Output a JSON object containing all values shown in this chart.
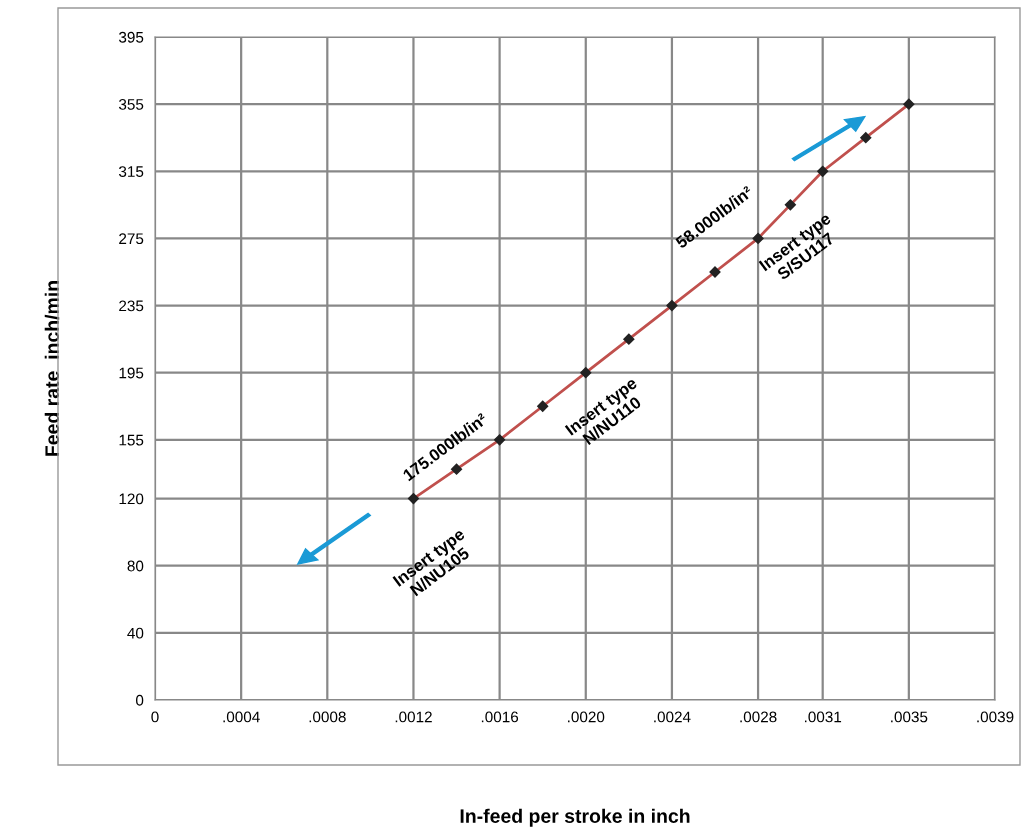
{
  "chart_data": {
    "type": "line",
    "xlabel": "In-feed per stroke in inch",
    "ylabel": "Feed rate  inch/min",
    "x": [
      0.0012,
      0.0014,
      0.0016,
      0.0018,
      0.002,
      0.0022,
      0.0024,
      0.0026,
      0.0028,
      0.00295,
      0.0031,
      0.0033,
      0.0035
    ],
    "series": [
      {
        "color": "#c0504d",
        "values": [
          120,
          137.5,
          155,
          175,
          195,
          215,
          235,
          255,
          275,
          295,
          315,
          335,
          355
        ]
      }
    ],
    "marker": "diamond",
    "grid": true,
    "xlim": [
      0,
      0.0039
    ],
    "ylim": [
      0,
      395
    ],
    "xticks": [
      {
        "value": 0,
        "label": "0"
      },
      {
        "value": 0.0004,
        "label": ".0004"
      },
      {
        "value": 0.0008,
        "label": ".0008"
      },
      {
        "value": 0.0012,
        "label": ".0012"
      },
      {
        "value": 0.0016,
        "label": ".0016"
      },
      {
        "value": 0.002,
        "label": ".0020"
      },
      {
        "value": 0.0024,
        "label": ".0024"
      },
      {
        "value": 0.0028,
        "label": ".0028"
      },
      {
        "value": 0.0031,
        "label": ".0031"
      },
      {
        "value": 0.0035,
        "label": ".0035"
      },
      {
        "value": 0.0039,
        "label": ".0039"
      }
    ],
    "yticks": [
      0,
      40,
      80,
      120,
      155,
      195,
      235,
      275,
      315,
      355,
      395
    ],
    "annotations": [
      "175.000lb/in²",
      "58.000lb/in²",
      "Insert type\nN/NU105",
      "Insert type\nN/NU110",
      "Insert type\nS/SU117"
    ]
  }
}
